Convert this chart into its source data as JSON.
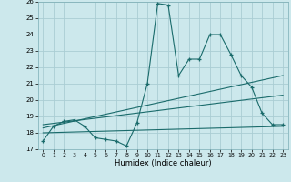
{
  "bg_color": "#cce8ec",
  "grid_color": "#aacdd4",
  "line_color": "#1a6b6b",
  "xlabel": "Humidex (Indice chaleur)",
  "ylim": [
    17,
    26
  ],
  "xlim": [
    -0.5,
    23.5
  ],
  "yticks": [
    17,
    18,
    19,
    20,
    21,
    22,
    23,
    24,
    25,
    26
  ],
  "xticks": [
    0,
    1,
    2,
    3,
    4,
    5,
    6,
    7,
    8,
    9,
    10,
    11,
    12,
    13,
    14,
    15,
    16,
    17,
    18,
    19,
    20,
    21,
    22,
    23
  ],
  "series1_x": [
    0,
    1,
    2,
    3,
    4,
    5,
    6,
    7,
    8,
    9,
    10,
    11,
    12,
    13,
    14,
    15,
    16,
    17,
    18,
    19,
    20,
    21,
    22,
    23
  ],
  "series1_y": [
    17.5,
    18.4,
    18.7,
    18.8,
    18.4,
    17.7,
    17.6,
    17.5,
    17.2,
    18.6,
    21.0,
    25.9,
    25.8,
    21.5,
    22.5,
    22.5,
    24.0,
    24.0,
    22.8,
    21.5,
    20.8,
    19.2,
    18.5,
    18.5
  ],
  "series2_x": [
    0,
    23
  ],
  "series2_y": [
    18.3,
    21.5
  ],
  "series3_x": [
    0,
    23
  ],
  "series3_y": [
    18.5,
    20.3
  ],
  "series4_x": [
    0,
    23
  ],
  "series4_y": [
    18.0,
    18.4
  ]
}
